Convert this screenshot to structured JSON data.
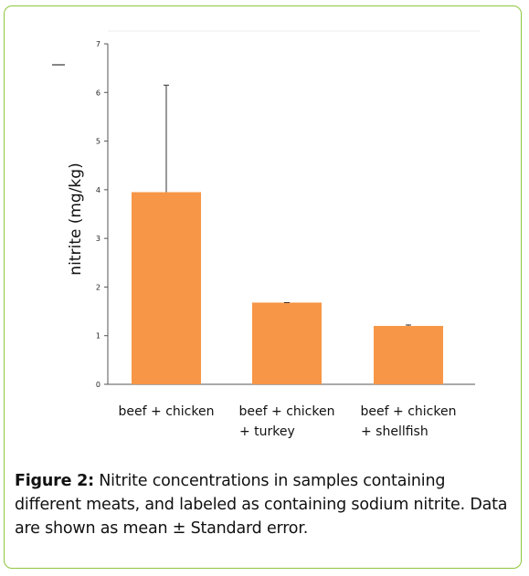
{
  "chart_data": {
    "type": "bar",
    "categories": [
      [
        "beef + chicken"
      ],
      [
        "beef + chicken",
        "+ turkey"
      ],
      [
        "beef  + chicken",
        "+ shellfish"
      ]
    ],
    "values": [
      3.95,
      1.68,
      1.2
    ],
    "errors": [
      2.2,
      0,
      0.02
    ],
    "ylabel": "nitrite (mg/kg)",
    "ylim": [
      0,
      7
    ],
    "yticks": [
      0,
      1,
      2,
      3,
      4,
      5,
      6,
      7
    ],
    "bar_color": "#f79646",
    "grid": false
  },
  "caption": {
    "label": "Figure 2:",
    "text": " Nitrite concentrations in samples containing different meats, and labeled as containing sodium nitrite. Data are shown as mean ± Standard error."
  },
  "colors": {
    "frame": "#8dc63f",
    "bar": "#f79646",
    "axis": "#555555"
  }
}
